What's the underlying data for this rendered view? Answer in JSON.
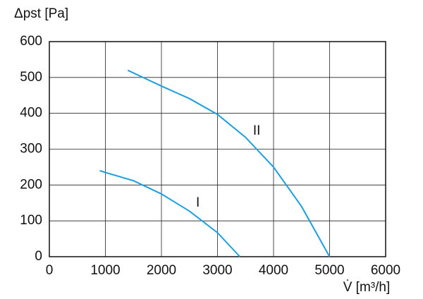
{
  "chart_data": {
    "type": "line",
    "ylabel": "Δpst [Pa]",
    "xlabel": "V̇ [m³/h]",
    "xlim": [
      0,
      6000
    ],
    "xticks": [
      0,
      1000,
      2000,
      3000,
      4000,
      5000,
      6000
    ],
    "ylim": [
      0,
      600
    ],
    "yticks": [
      0,
      100,
      200,
      300,
      400,
      500,
      600
    ],
    "grid": true,
    "series": [
      {
        "name": "I",
        "color": "#1a9fe0",
        "x": [
          900,
          1000,
          1500,
          2000,
          2500,
          3000,
          3400
        ],
        "values": [
          240,
          235,
          212,
          175,
          127,
          67,
          0
        ]
      },
      {
        "name": "II",
        "color": "#1a9fe0",
        "x": [
          1400,
          1700,
          2000,
          2500,
          3000,
          3500,
          4000,
          4500,
          5000
        ],
        "values": [
          520,
          498,
          476,
          441,
          397,
          333,
          250,
          140,
          0
        ]
      }
    ]
  }
}
